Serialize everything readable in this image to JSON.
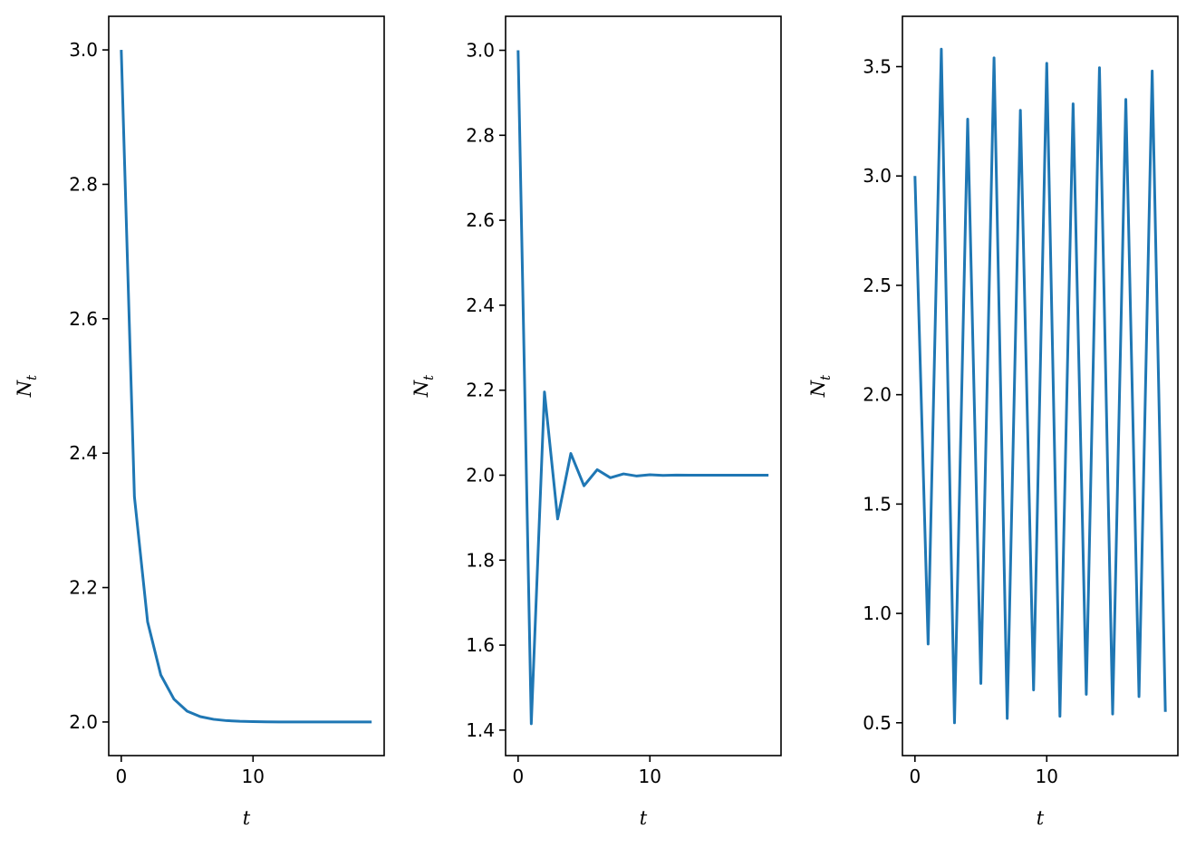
{
  "colors": {
    "series": "#1f77b4",
    "axes": "#000000",
    "background": "#ffffff"
  },
  "chart_data": [
    {
      "type": "line",
      "xlabel": "t",
      "ylabel": "N_t",
      "xlim": [
        -0.95,
        19.95
      ],
      "ylim": [
        1.95,
        3.05
      ],
      "xticks": [
        0,
        10
      ],
      "yticks": [
        2.0,
        2.2,
        2.4,
        2.6,
        2.8,
        3.0
      ],
      "ytick_labels": [
        "2.0",
        "2.2",
        "2.4",
        "2.6",
        "2.8",
        "3.0"
      ],
      "xtick_labels": [
        "0",
        "10"
      ],
      "grid": false,
      "series": [
        {
          "x": [
            0,
            1,
            2,
            3,
            4,
            5,
            6,
            7,
            8,
            9,
            10,
            11,
            12,
            13,
            14,
            15,
            16,
            17,
            18,
            19
          ],
          "y": [
            3.0,
            2.335,
            2.149,
            2.07,
            2.034,
            2.016,
            2.008,
            2.004,
            2.002,
            2.001,
            2.0005,
            2.0002,
            2.0001,
            2.0,
            2.0,
            2.0,
            2.0,
            2.0,
            2.0,
            2.0
          ]
        }
      ]
    },
    {
      "type": "line",
      "xlabel": "t",
      "ylabel": "N_t",
      "xlim": [
        -0.95,
        19.95
      ],
      "ylim": [
        1.34,
        3.08
      ],
      "xticks": [
        0,
        10
      ],
      "yticks": [
        1.4,
        1.6,
        1.8,
        2.0,
        2.2,
        2.4,
        2.6,
        2.8,
        3.0
      ],
      "ytick_labels": [
        "1.4",
        "1.6",
        "1.8",
        "2.0",
        "2.2",
        "2.4",
        "2.6",
        "2.8",
        "3.0"
      ],
      "xtick_labels": [
        "0",
        "10"
      ],
      "grid": false,
      "series": [
        {
          "x": [
            0,
            1,
            2,
            3,
            4,
            5,
            6,
            7,
            8,
            9,
            10,
            11,
            12,
            13,
            14,
            15,
            16,
            17,
            18,
            19
          ],
          "y": [
            3.0,
            1.415,
            2.196,
            1.897,
            2.051,
            1.975,
            2.013,
            1.994,
            2.003,
            1.998,
            2.001,
            1.9995,
            2.0003,
            1.9999,
            2.0,
            2.0,
            2.0,
            2.0,
            2.0,
            2.0
          ]
        }
      ]
    },
    {
      "type": "line",
      "xlabel": "t",
      "ylabel": "N_t",
      "xlim": [
        -0.95,
        19.95
      ],
      "ylim": [
        0.35,
        3.73
      ],
      "xticks": [
        0,
        10
      ],
      "yticks": [
        0.5,
        1.0,
        1.5,
        2.0,
        2.5,
        3.0,
        3.5
      ],
      "ytick_labels": [
        "0.5",
        "1.0",
        "1.5",
        "2.0",
        "2.5",
        "3.0",
        "3.5"
      ],
      "xtick_labels": [
        "0",
        "10"
      ],
      "grid": false,
      "series": [
        {
          "x": [
            0,
            1,
            2,
            3,
            4,
            5,
            6,
            7,
            8,
            9,
            10,
            11,
            12,
            13,
            14,
            15,
            16,
            17,
            18,
            19
          ],
          "y": [
            3.0,
            0.86,
            3.58,
            0.5,
            3.26,
            0.68,
            3.54,
            0.52,
            3.3,
            0.65,
            3.515,
            0.53,
            3.33,
            0.63,
            3.495,
            0.54,
            3.35,
            0.62,
            3.48,
            0.55
          ]
        }
      ]
    }
  ]
}
